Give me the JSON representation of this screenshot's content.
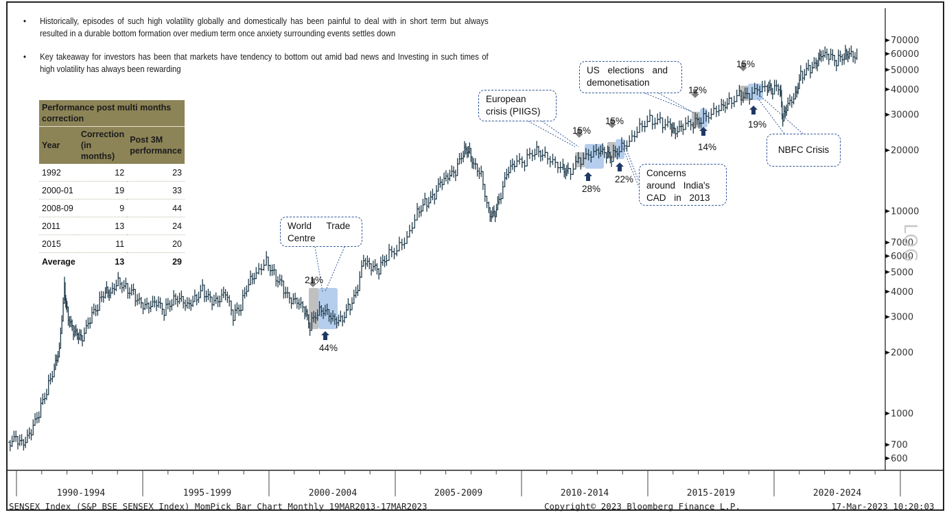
{
  "bullets": [
    "Historically, episodes of such high volatility globally and domestically has been painful to deal with in short term but always resulted in a durable bottom formation over medium term once anxiety surrounding events settles down",
    "Key takeaway for investors has been that markets have tendency to bottom out amid bad news and Investing in such times of high volatility has always been rewarding"
  ],
  "table": {
    "title": "Performance post multi months correction",
    "headers": [
      "Year",
      "Correction (in months)",
      "Post 3M performance"
    ],
    "rows": [
      [
        "1992",
        "12",
        "23"
      ],
      [
        "2000-01",
        "19",
        "33"
      ],
      [
        "2008-09",
        "9",
        "44"
      ],
      [
        "2011",
        "13",
        "24"
      ],
      [
        "2015",
        "11",
        "20"
      ]
    ],
    "average": [
      "Average",
      "13",
      "29"
    ]
  },
  "callouts": {
    "wtc": "World Trade Centre",
    "european": "European crisis (PIIGS)",
    "us": "US elections and demonetisation",
    "cad": "Concerns around India's CAD in 2013",
    "nbfc": "NBFC Crisis"
  },
  "colors": {
    "line": "#1f3a4a",
    "correction_box": "#9e9e9e",
    "recovery_box": "#8fb4e3",
    "down_arrow": "#808080",
    "up_arrow": "#1f3864",
    "table_header": "#8c8457"
  },
  "footer": {
    "left": "SENSEX Index (S&P BSE SENSEX Index) MomPick Bar Chart  Monthly 19MAR2013-17MAR2023",
    "center": "Copyright© 2023 Bloomberg Finance L.P.",
    "right": "17-Mar-2023 10:20:03"
  },
  "watermark": "LOG",
  "chart_data": {
    "type": "line",
    "title": "SENSEX Index (S&P BSE SENSEX Index) Monthly",
    "yscale": "log",
    "ylim": [
      550,
      80000
    ],
    "xlim": [
      1990.0,
      2024.2
    ],
    "y_ticks": [
      600,
      700,
      1000,
      2000,
      3000,
      4000,
      5000,
      6000,
      7000,
      10000,
      20000,
      30000,
      40000,
      50000,
      60000,
      70000
    ],
    "x_periods": [
      "1990-1994",
      "1995-1999",
      "2000-2004",
      "2005-2009",
      "2010-2014",
      "2015-2019",
      "2020-2024"
    ],
    "series": [
      {
        "name": "SENSEX",
        "x": [
          1990.0,
          1990.3,
          1990.6,
          1990.9,
          1991.2,
          1991.5,
          1991.8,
          1992.0,
          1992.2,
          1992.3,
          1992.5,
          1992.7,
          1992.9,
          1993.2,
          1993.5,
          1993.8,
          1994.0,
          1994.3,
          1994.6,
          1994.9,
          1995.2,
          1995.5,
          1995.8,
          1996.1,
          1996.4,
          1996.7,
          1997.0,
          1997.3,
          1997.6,
          1997.9,
          1998.2,
          1998.5,
          1998.8,
          1999.1,
          1999.4,
          1999.7,
          2000.1,
          2000.4,
          2000.7,
          2001.0,
          2001.3,
          2001.6,
          2001.8,
          2002.1,
          2002.4,
          2002.7,
          2003.0,
          2003.3,
          2003.6,
          2003.9,
          2004.2,
          2004.5,
          2004.8,
          2005.2,
          2005.6,
          2006.0,
          2006.3,
          2006.6,
          2006.9,
          2007.2,
          2007.5,
          2007.8,
          2008.0,
          2008.2,
          2008.5,
          2008.8,
          2009.0,
          2009.2,
          2009.5,
          2009.8,
          2010.2,
          2010.6,
          2010.9,
          2011.3,
          2011.7,
          2011.9,
          2012.3,
          2012.7,
          2013.1,
          2013.4,
          2013.6,
          2013.9,
          2014.3,
          2014.7,
          2015.1,
          2015.5,
          2015.9,
          2016.1,
          2016.4,
          2016.8,
          2017.1,
          2017.5,
          2017.9,
          2018.2,
          2018.6,
          2018.9,
          2019.3,
          2019.7,
          2019.9,
          2020.2,
          2020.3,
          2020.5,
          2020.8,
          2021.0,
          2021.3,
          2021.6,
          2021.8,
          2022.1,
          2022.4,
          2022.7,
          2022.9,
          2023.2
        ],
        "values": [
          720,
          740,
          690,
          800,
          1000,
          1300,
          1700,
          2100,
          4300,
          3200,
          2600,
          2400,
          2300,
          2900,
          3400,
          4100,
          4000,
          4600,
          4200,
          3900,
          3400,
          3300,
          3500,
          3200,
          3600,
          3800,
          3500,
          3700,
          4100,
          3600,
          3500,
          3900,
          3000,
          3400,
          4500,
          5000,
          5800,
          4900,
          4300,
          3600,
          3500,
          3200,
          2700,
          3200,
          3300,
          3000,
          2900,
          3300,
          3800,
          5600,
          5200,
          5100,
          6000,
          6600,
          7500,
          10000,
          11000,
          11500,
          13500,
          14500,
          15500,
          19500,
          20500,
          17500,
          15500,
          10000,
          9500,
          11000,
          15000,
          17000,
          17500,
          20000,
          19500,
          18000,
          16500,
          15500,
          17500,
          18500,
          19500,
          19000,
          18500,
          20500,
          22500,
          26500,
          28500,
          27500,
          26000,
          24000,
          26000,
          27000,
          28500,
          31000,
          33500,
          35000,
          37500,
          36500,
          39000,
          40000,
          39500,
          41000,
          29000,
          34500,
          38000,
          47000,
          50000,
          52000,
          58000,
          58000,
          55000,
          59000,
          61500,
          59000
        ]
      }
    ],
    "annotations": [
      {
        "event": "World Trade Centre",
        "correction_pct": 21,
        "recovery_pct": 44
      },
      {
        "event": "European crisis (PIIGS)",
        "correction_pct": 15,
        "recovery_pct": 28
      },
      {
        "event": "Concerns around India's CAD in 2013",
        "correction_pct": 15,
        "recovery_pct": 22
      },
      {
        "event": "US elections and demonetisation",
        "correction_pct": 12,
        "recovery_pct": 14
      },
      {
        "event": "NBFC Crisis",
        "correction_pct": 15,
        "recovery_pct": 19
      }
    ]
  }
}
